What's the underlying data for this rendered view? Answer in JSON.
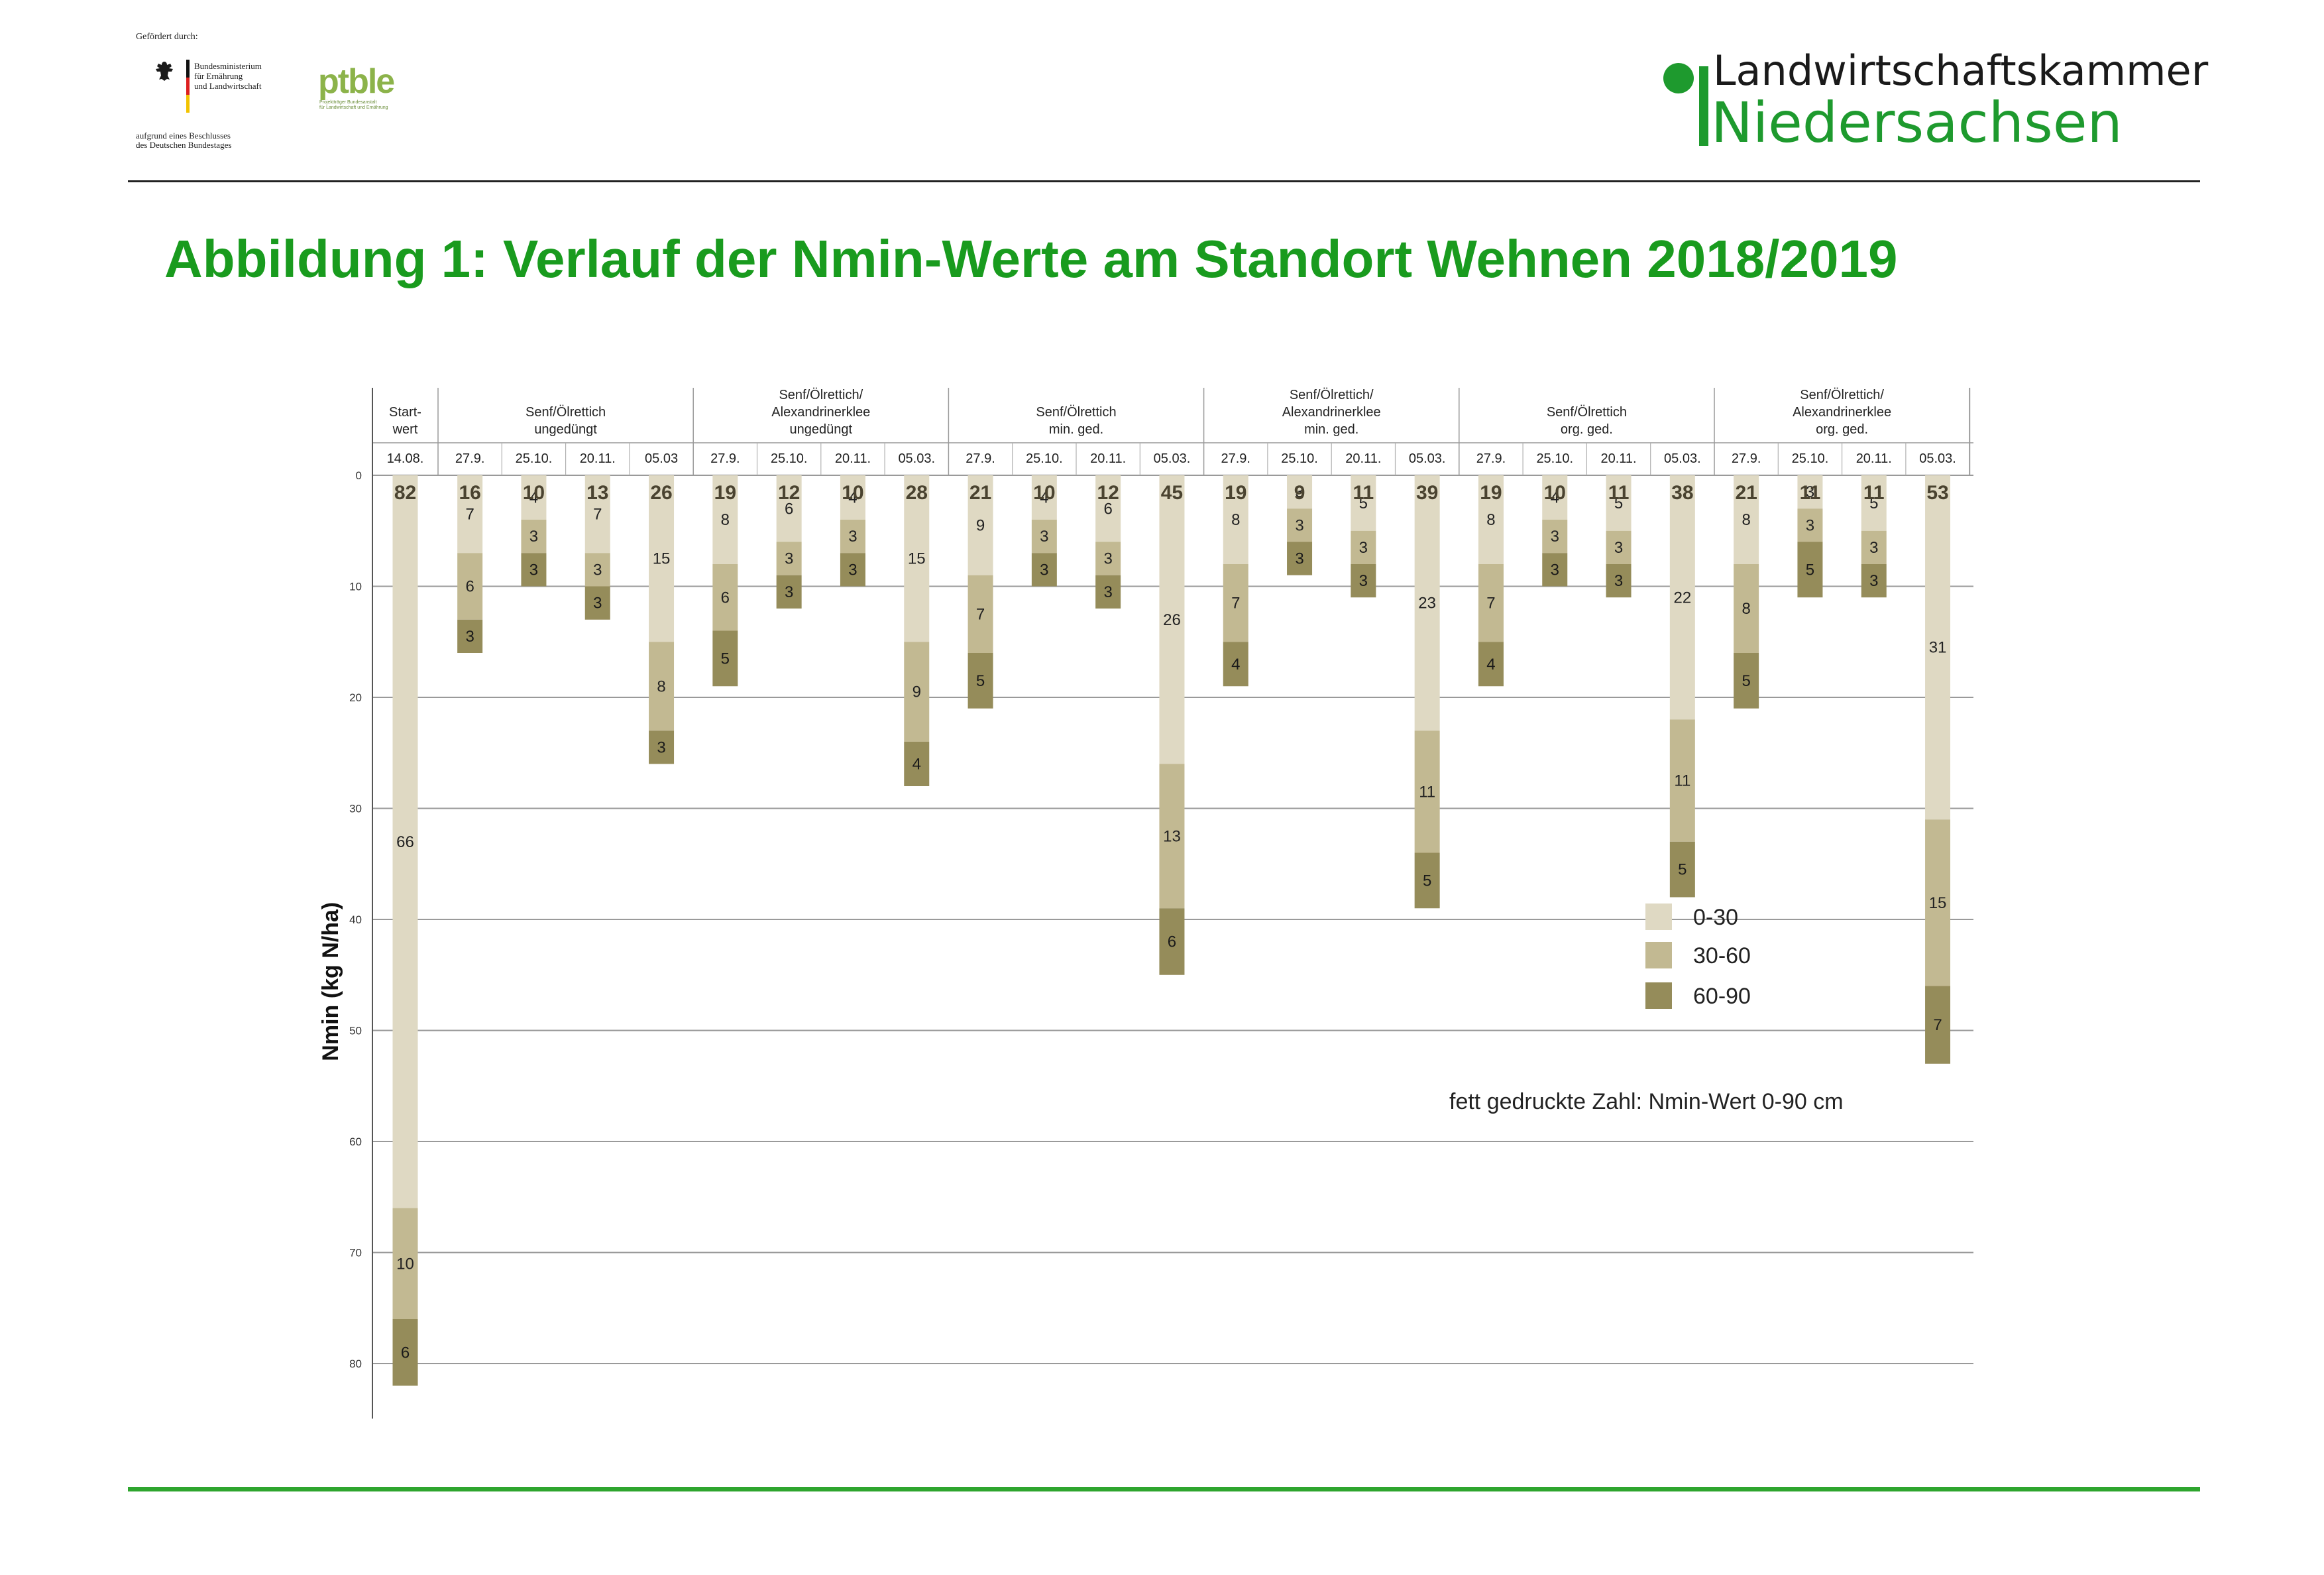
{
  "header": {
    "funded_by": "Gefördert durch:",
    "ministry_name": "Bundesministerium\nfür Ernährung\nund Landwirtschaft",
    "resolution": "aufgrund eines Beschlusses\ndes Deutschen Bundestages",
    "ptble_logo": "ptble",
    "ptble_subtitle": "Projektträger Bundesanstalt\nfür Landwirtschaft und Ernährung",
    "lwk_line1": "Landwirtschaftskammer",
    "lwk_line2": "Niedersachsen",
    "brand_green": "#1e9a2e"
  },
  "page_title": "Abbildung 1: Verlauf der Nmin-Werte am Standort Wehnen 2018/2019",
  "chart_data": {
    "type": "bar",
    "stacked": true,
    "orientation": "downward",
    "ylabel": "Nmin (kg N/ha)",
    "ylim": [
      0,
      85
    ],
    "yticks": [
      0,
      10,
      20,
      30,
      40,
      50,
      60,
      70,
      80
    ],
    "grid": true,
    "groups": [
      {
        "label": "Start-\nwert",
        "dates": [
          "14.08."
        ]
      },
      {
        "label": "Senf/Ölrettich\nungedüngt",
        "dates": [
          "27.9.",
          "25.10.",
          "20.11.",
          "05.03"
        ]
      },
      {
        "label": "Senf/Ölrettich/\nAlexandrinerklee\nungedüngt",
        "dates": [
          "27.9.",
          "25.10.",
          "20.11.",
          "05.03."
        ]
      },
      {
        "label": "Senf/Ölrettich\nmin. ged.",
        "dates": [
          "27.9.",
          "25.10.",
          "20.11.",
          "05.03."
        ]
      },
      {
        "label": "Senf/Ölrettich/\nAlexandrinerklee\nmin. ged.",
        "dates": [
          "27.9.",
          "25.10.",
          "20.11.",
          "05.03."
        ]
      },
      {
        "label": "Senf/Ölrettich\norg. ged.",
        "dates": [
          "27.9.",
          "25.10.",
          "20.11.",
          "05.03."
        ]
      },
      {
        "label": "Senf/Ölrettich/\nAlexandrinerklee\norg. ged.",
        "dates": [
          "27.9.",
          "25.10.",
          "20.11.",
          "05.03."
        ]
      }
    ],
    "series": [
      {
        "name": "0-30",
        "color": "#dfd9c3",
        "values": [
          66,
          7,
          4,
          7,
          15,
          8,
          6,
          4,
          15,
          9,
          4,
          6,
          26,
          8,
          3,
          5,
          23,
          8,
          4,
          5,
          22,
          8,
          3,
          5,
          31
        ]
      },
      {
        "name": "30-60",
        "color": "#c2b992",
        "values": [
          10,
          6,
          3,
          3,
          8,
          6,
          3,
          3,
          9,
          7,
          3,
          3,
          13,
          7,
          3,
          3,
          11,
          7,
          3,
          3,
          11,
          8,
          3,
          3,
          15
        ]
      },
      {
        "name": "60-90",
        "color": "#958c5a",
        "values": [
          6,
          3,
          3,
          3,
          3,
          5,
          3,
          3,
          4,
          5,
          3,
          3,
          6,
          4,
          3,
          3,
          5,
          4,
          3,
          3,
          5,
          5,
          5,
          3,
          7
        ]
      }
    ],
    "totals": [
      82,
      16,
      10,
      13,
      26,
      19,
      12,
      10,
      28,
      21,
      10,
      12,
      45,
      19,
      9,
      11,
      39,
      19,
      10,
      11,
      38,
      21,
      11,
      11,
      53
    ],
    "legend": {
      "position": "right",
      "entries": [
        "0-30",
        "30-60",
        "60-90"
      ]
    },
    "annotation": "fett gedruckte Zahl: Nmin-Wert 0-90 cm"
  }
}
